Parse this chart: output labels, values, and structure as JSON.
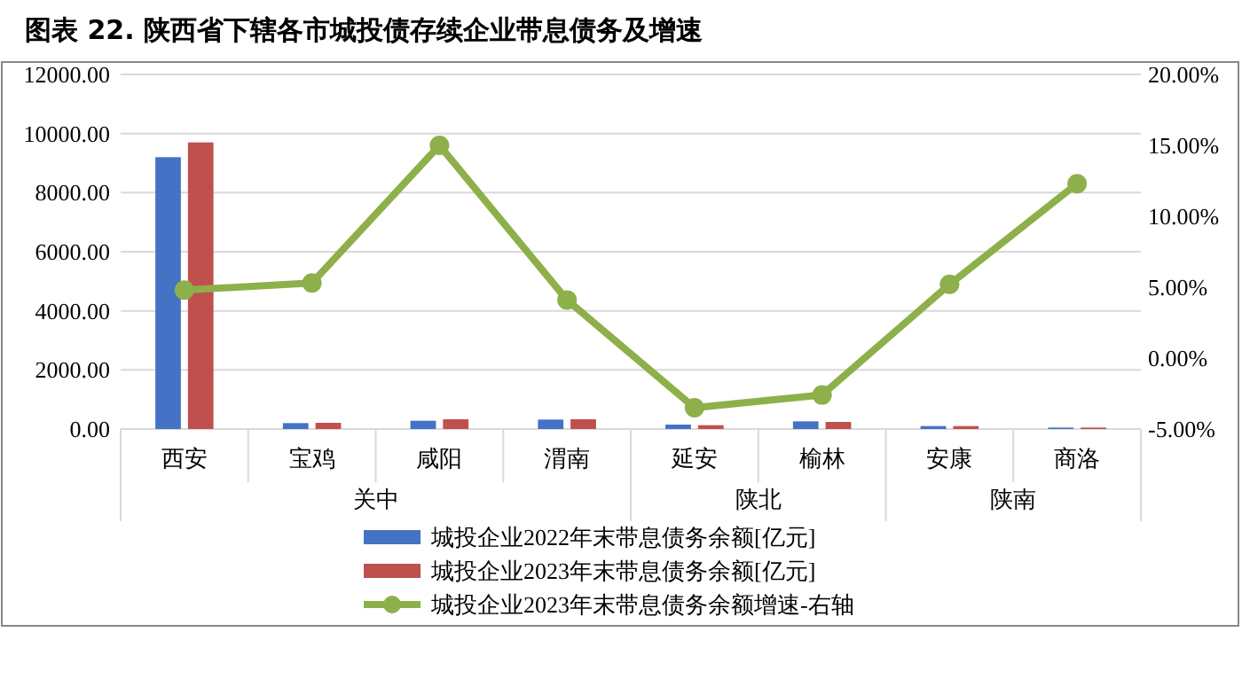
{
  "chart_data": {
    "type": "bar",
    "title": "图表 22.   陕西省下辖各市城投债存续企业带息债务及增速",
    "categories": [
      "西安",
      "宝鸡",
      "咸阳",
      "渭南",
      "延安",
      "榆林",
      "安康",
      "商洛"
    ],
    "series": [
      {
        "name": "城投企业2022年末带息债务余额[亿元]",
        "color": "#4472c4",
        "values": [
          9200,
          200,
          280,
          320,
          150,
          260,
          100,
          50
        ]
      },
      {
        "name": "城投企业2023年末带息债务余额[亿元]",
        "color": "#c0504d",
        "values": [
          9700,
          210,
          330,
          330,
          130,
          240,
          100,
          50
        ]
      },
      {
        "name": "城投企业2023年末带息债务余额增速-右轴",
        "type": "line",
        "axis": "y2",
        "color": "#8db04a",
        "marker": "circle",
        "values": [
          4.8,
          5.3,
          15.0,
          4.1,
          -3.5,
          -2.6,
          5.2,
          12.3
        ]
      }
    ],
    "annotations": [
      "关中",
      "陕北",
      "陕南"
    ],
    "ylim": [
      0,
      12000
    ],
    "yticks": [
      {
        "value": 0,
        "label": "0.00"
      },
      {
        "value": 2000,
        "label": "2000.00"
      },
      {
        "value": 4000,
        "label": "4000.00"
      },
      {
        "value": 6000,
        "label": "6000.00"
      },
      {
        "value": 8000,
        "label": "8000.00"
      },
      {
        "value": 10000,
        "label": "10000.00"
      },
      {
        "value": 12000,
        "label": "12000.00"
      }
    ],
    "y2lim": [
      -5,
      20
    ],
    "y2ticks": [
      {
        "value": -5,
        "label": "-5.00%"
      },
      {
        "value": 0,
        "label": "0.00%"
      },
      {
        "value": 5,
        "label": "5.00%"
      },
      {
        "value": 10,
        "label": "10.00%"
      },
      {
        "value": 15,
        "label": "15.00%"
      },
      {
        "value": 20,
        "label": "20.00%"
      }
    ],
    "grid": "y",
    "legend": "bottom"
  }
}
